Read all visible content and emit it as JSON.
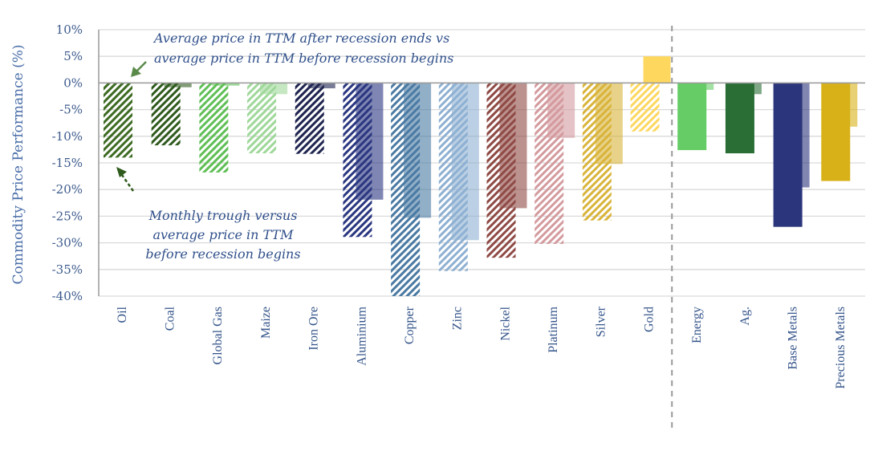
{
  "chart_data": {
    "type": "bar",
    "title": "",
    "xlabel": "",
    "ylabel": "Commodity Price Performance (%)",
    "ylim": [
      -40,
      10
    ],
    "yticks": [
      10,
      5,
      0,
      -5,
      -10,
      -15,
      -20,
      -25,
      -30,
      -35,
      -40
    ],
    "ytick_labels": [
      "10%",
      "5%",
      "0%",
      "-5%",
      "-10%",
      "-15%",
      "-20%",
      "-25%",
      "-30%",
      "-35%",
      "-40%"
    ],
    "grid": true,
    "categories": [
      "Oil",
      "Coal",
      "Global Gas",
      "Maize",
      "Iron Ore",
      "Aluminium",
      "Copper",
      "Zinc",
      "Nickel",
      "Platinum",
      "Silver",
      "Gold",
      "Energy",
      "Ag.",
      "Base Metals",
      "Precious Metals"
    ],
    "separator_after_category": "Gold",
    "series": [
      {
        "name": "Monthly trough versus average price in TTM before recession begins",
        "style": "hatched / solid (aggregates)",
        "values": [
          -14,
          -11.7,
          -16.8,
          -13.2,
          -13.3,
          -28.9,
          -40,
          -35.3,
          -32.8,
          -30.2,
          -25.8,
          -9.1,
          -12.6,
          -13.2,
          -27,
          -18.4
        ]
      },
      {
        "name": "Average price in TTM after recession ends vs average price in TTM before recession begins",
        "style": "solid lighter",
        "values": [
          0,
          -0.8,
          -0.5,
          -2.1,
          -1,
          -21.9,
          -25.3,
          -29.5,
          -23.5,
          -10.3,
          -15.2,
          5,
          -1.3,
          -2.1,
          -19.6,
          -8.2
        ]
      }
    ],
    "colors": [
      "#3d6b22",
      "#2e5a1c",
      "#5fbf55",
      "#9fd89a",
      "#1f2550",
      "#2a3680",
      "#4a7aa3",
      "#8eb0d2",
      "#8f4a45",
      "#d49a9e",
      "#d9b43a",
      "#fdd75e",
      "#66cc66",
      "#2a6e35",
      "#2b357b",
      "#d8b119"
    ],
    "annotations": [
      {
        "text_lines": [
          "Average price in TTM after recession ends vs",
          "average price in TTM  before recession begins"
        ],
        "points_to": "Oil second series (0%)"
      },
      {
        "text_lines": [
          "Monthly trough versus",
          "average price in TTM",
          "before recession begins"
        ],
        "points_to": "Oil first series (-14%)"
      }
    ]
  }
}
